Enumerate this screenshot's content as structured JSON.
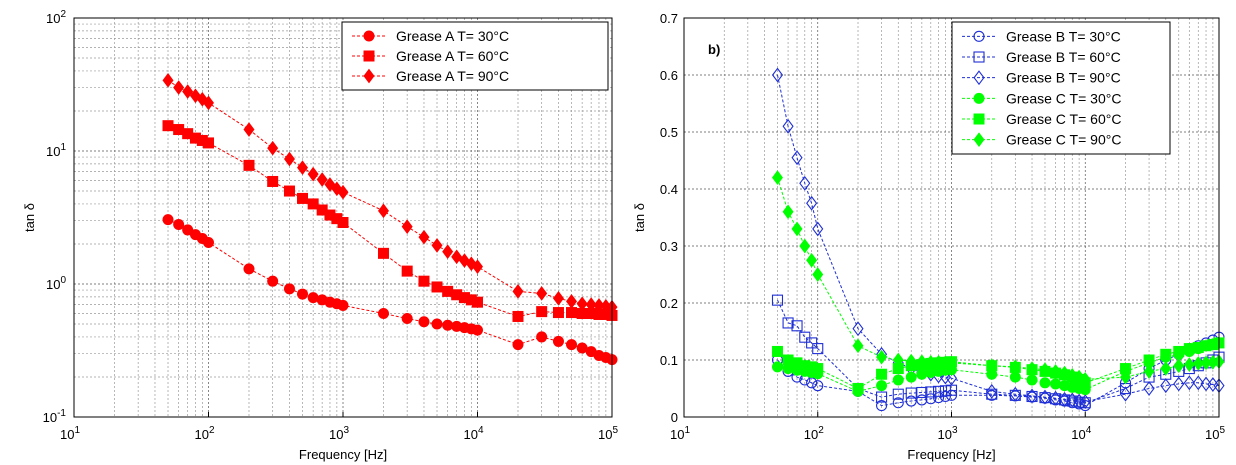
{
  "chart_data": [
    {
      "type": "line",
      "panel_label": "",
      "xscale": "log",
      "yscale": "log",
      "xlim": [
        10,
        100000
      ],
      "ylim": [
        0.1,
        100
      ],
      "xlabel": "Frequency [Hz]",
      "ylabel": "tan δ",
      "x_tick_labels": [
        "10",
        "10",
        "10",
        "10",
        "10"
      ],
      "x_tick_exponents": [
        "1",
        "2",
        "3",
        "4",
        "5"
      ],
      "y_tick_labels": [
        "10",
        "10",
        "10",
        "10"
      ],
      "y_tick_exponents": [
        "-1",
        "0",
        "1",
        "2"
      ],
      "grid": true,
      "legend_position": "top-right",
      "series": [
        {
          "name": "Grease A T= 30°C",
          "color": "#ff0000",
          "marker": "circle",
          "filled": true,
          "x": [
            50,
            60,
            70,
            80,
            90,
            100,
            200,
            300,
            400,
            500,
            600,
            700,
            800,
            900,
            1000,
            2000,
            3000,
            4000,
            5000,
            6000,
            7000,
            8000,
            9000,
            10000,
            20000,
            30000,
            40000,
            50000,
            60000,
            70000,
            80000,
            90000,
            100000
          ],
          "y": [
            3.05,
            2.8,
            2.55,
            2.35,
            2.2,
            2.05,
            1.3,
            1.05,
            0.92,
            0.84,
            0.79,
            0.76,
            0.73,
            0.71,
            0.69,
            0.6,
            0.55,
            0.52,
            0.5,
            0.49,
            0.48,
            0.47,
            0.46,
            0.45,
            0.35,
            0.4,
            0.37,
            0.35,
            0.33,
            0.31,
            0.29,
            0.28,
            0.27
          ]
        },
        {
          "name": "Grease A T= 60°C",
          "color": "#ff0000",
          "marker": "square",
          "filled": true,
          "x": [
            50,
            60,
            70,
            80,
            90,
            100,
            200,
            300,
            400,
            500,
            600,
            700,
            800,
            900,
            1000,
            2000,
            3000,
            4000,
            5000,
            6000,
            7000,
            8000,
            9000,
            10000,
            20000,
            30000,
            40000,
            50000,
            60000,
            70000,
            80000,
            90000,
            100000
          ],
          "y": [
            15.5,
            14.5,
            13.5,
            12.5,
            12,
            11.5,
            7.8,
            5.9,
            5.0,
            4.4,
            4.0,
            3.6,
            3.3,
            3.1,
            2.9,
            1.7,
            1.25,
            1.05,
            0.95,
            0.88,
            0.83,
            0.79,
            0.76,
            0.73,
            0.57,
            0.62,
            0.61,
            0.61,
            0.6,
            0.6,
            0.59,
            0.59,
            0.58
          ]
        },
        {
          "name": "Grease A T= 90°C",
          "color": "#ff0000",
          "marker": "diamond",
          "filled": true,
          "x": [
            50,
            60,
            70,
            80,
            90,
            100,
            200,
            300,
            400,
            500,
            600,
            700,
            800,
            900,
            1000,
            2000,
            3000,
            4000,
            5000,
            6000,
            7000,
            8000,
            9000,
            10000,
            20000,
            30000,
            40000,
            50000,
            60000,
            70000,
            80000,
            90000,
            100000
          ],
          "y": [
            34,
            30,
            28,
            26,
            24.5,
            23,
            14.5,
            10.5,
            8.7,
            7.5,
            6.7,
            6.1,
            5.6,
            5.2,
            4.9,
            3.55,
            2.7,
            2.25,
            1.95,
            1.75,
            1.6,
            1.5,
            1.42,
            1.35,
            0.88,
            0.85,
            0.78,
            0.74,
            0.71,
            0.7,
            0.69,
            0.68,
            0.67
          ]
        }
      ]
    },
    {
      "type": "line",
      "panel_label": "b)",
      "xscale": "log",
      "yscale": "linear",
      "xlim": [
        10,
        100000
      ],
      "ylim": [
        0,
        0.7
      ],
      "xlabel": "Frequency [Hz]",
      "ylabel": "tan δ",
      "x_tick_labels": [
        "10",
        "10",
        "10",
        "10",
        "10"
      ],
      "x_tick_exponents": [
        "1",
        "2",
        "3",
        "4",
        "5"
      ],
      "y_ticks": [
        0,
        0.1,
        0.2,
        0.3,
        0.4,
        0.5,
        0.6,
        0.7
      ],
      "y_tick_labels": [
        "0",
        "0.1",
        "0.2",
        "0.3",
        "0.4",
        "0.5",
        "0.6",
        "0.7"
      ],
      "grid": true,
      "legend_position": "top-right",
      "series": [
        {
          "name": "Grease B T= 30°C",
          "color": "#1f2fd6",
          "marker": "circle",
          "filled": false,
          "x": [
            50,
            60,
            70,
            80,
            90,
            100,
            200,
            300,
            400,
            500,
            600,
            700,
            800,
            900,
            1000,
            2000,
            3000,
            4000,
            5000,
            6000,
            7000,
            8000,
            9000,
            10000,
            20000,
            30000,
            40000,
            50000,
            60000,
            70000,
            80000,
            90000,
            100000
          ],
          "y": [
            0.1,
            0.08,
            0.07,
            0.065,
            0.06,
            0.055,
            0.045,
            0.02,
            0.025,
            0.028,
            0.03,
            0.032,
            0.034,
            0.036,
            0.038,
            0.038,
            0.037,
            0.035,
            0.033,
            0.03,
            0.028,
            0.025,
            0.023,
            0.02,
            0.06,
            0.085,
            0.1,
            0.11,
            0.12,
            0.125,
            0.13,
            0.135,
            0.14
          ]
        },
        {
          "name": "Grease B T= 60°C",
          "color": "#1f2fd6",
          "marker": "square",
          "filled": false,
          "x": [
            50,
            60,
            70,
            80,
            90,
            100,
            200,
            300,
            400,
            500,
            600,
            700,
            800,
            900,
            1000,
            2000,
            3000,
            4000,
            5000,
            6000,
            7000,
            8000,
            9000,
            10000,
            20000,
            30000,
            40000,
            50000,
            60000,
            70000,
            80000,
            90000,
            100000
          ],
          "y": [
            0.205,
            0.165,
            0.16,
            0.14,
            0.13,
            0.12,
            0.05,
            0.035,
            0.04,
            0.042,
            0.043,
            0.044,
            0.045,
            0.046,
            0.047,
            0.04,
            0.038,
            0.036,
            0.034,
            0.032,
            0.03,
            0.028,
            0.026,
            0.025,
            0.05,
            0.07,
            0.075,
            0.08,
            0.085,
            0.09,
            0.095,
            0.1,
            0.105
          ]
        },
        {
          "name": "Grease B T= 90°C",
          "color": "#1f2fd6",
          "marker": "diamond",
          "filled": false,
          "x": [
            50,
            60,
            70,
            80,
            90,
            100,
            200,
            300,
            400,
            500,
            600,
            700,
            800,
            900,
            1000,
            2000,
            3000,
            4000,
            5000,
            6000,
            7000,
            8000,
            9000,
            10000,
            20000,
            30000,
            40000,
            50000,
            60000,
            70000,
            80000,
            90000,
            100000
          ],
          "y": [
            0.6,
            0.51,
            0.455,
            0.41,
            0.375,
            0.33,
            0.155,
            0.11,
            0.095,
            0.085,
            0.078,
            0.075,
            0.072,
            0.07,
            0.068,
            0.045,
            0.04,
            0.037,
            0.035,
            0.033,
            0.031,
            0.03,
            0.028,
            0.027,
            0.04,
            0.05,
            0.055,
            0.058,
            0.06,
            0.06,
            0.058,
            0.057,
            0.055
          ]
        },
        {
          "name": "Grease C T= 30°C",
          "color": "#00ff00",
          "marker": "circle",
          "filled": true,
          "x": [
            50,
            60,
            70,
            80,
            90,
            100,
            200,
            300,
            400,
            500,
            600,
            700,
            800,
            900,
            1000,
            2000,
            3000,
            4000,
            5000,
            6000,
            7000,
            8000,
            9000,
            10000,
            20000,
            30000,
            40000,
            50000,
            60000,
            70000,
            80000,
            90000,
            100000
          ],
          "y": [
            0.088,
            0.085,
            0.082,
            0.08,
            0.078,
            0.076,
            0.045,
            0.055,
            0.065,
            0.07,
            0.075,
            0.078,
            0.08,
            0.082,
            0.083,
            0.075,
            0.07,
            0.065,
            0.06,
            0.058,
            0.055,
            0.052,
            0.05,
            0.048,
            0.08,
            0.095,
            0.105,
            0.11,
            0.115,
            0.12,
            0.125,
            0.128,
            0.13
          ]
        },
        {
          "name": "Grease C T= 60°C",
          "color": "#00ff00",
          "marker": "square",
          "filled": true,
          "x": [
            50,
            60,
            70,
            80,
            90,
            100,
            200,
            300,
            400,
            500,
            600,
            700,
            800,
            900,
            1000,
            2000,
            3000,
            4000,
            5000,
            6000,
            7000,
            8000,
            9000,
            10000,
            20000,
            30000,
            40000,
            50000,
            60000,
            70000,
            80000,
            90000,
            100000
          ],
          "y": [
            0.115,
            0.1,
            0.095,
            0.09,
            0.088,
            0.085,
            0.05,
            0.075,
            0.085,
            0.09,
            0.092,
            0.094,
            0.095,
            0.096,
            0.097,
            0.09,
            0.087,
            0.083,
            0.08,
            0.077,
            0.074,
            0.07,
            0.066,
            0.06,
            0.085,
            0.1,
            0.11,
            0.115,
            0.12,
            0.122,
            0.125,
            0.127,
            0.13
          ]
        },
        {
          "name": "Grease C T= 90°C",
          "color": "#00ff00",
          "marker": "diamond",
          "filled": true,
          "x": [
            50,
            60,
            70,
            80,
            90,
            100,
            200,
            300,
            400,
            500,
            600,
            700,
            800,
            900,
            1000,
            2000,
            3000,
            4000,
            5000,
            6000,
            7000,
            8000,
            9000,
            10000,
            20000,
            30000,
            40000,
            50000,
            60000,
            70000,
            80000,
            90000,
            100000
          ],
          "y": [
            0.42,
            0.36,
            0.33,
            0.3,
            0.275,
            0.25,
            0.125,
            0.105,
            0.1,
            0.098,
            0.097,
            0.096,
            0.096,
            0.095,
            0.095,
            0.09,
            0.088,
            0.085,
            0.083,
            0.08,
            0.077,
            0.073,
            0.07,
            0.066,
            0.07,
            0.08,
            0.085,
            0.09,
            0.092,
            0.094,
            0.095,
            0.096,
            0.097
          ]
        }
      ]
    }
  ]
}
